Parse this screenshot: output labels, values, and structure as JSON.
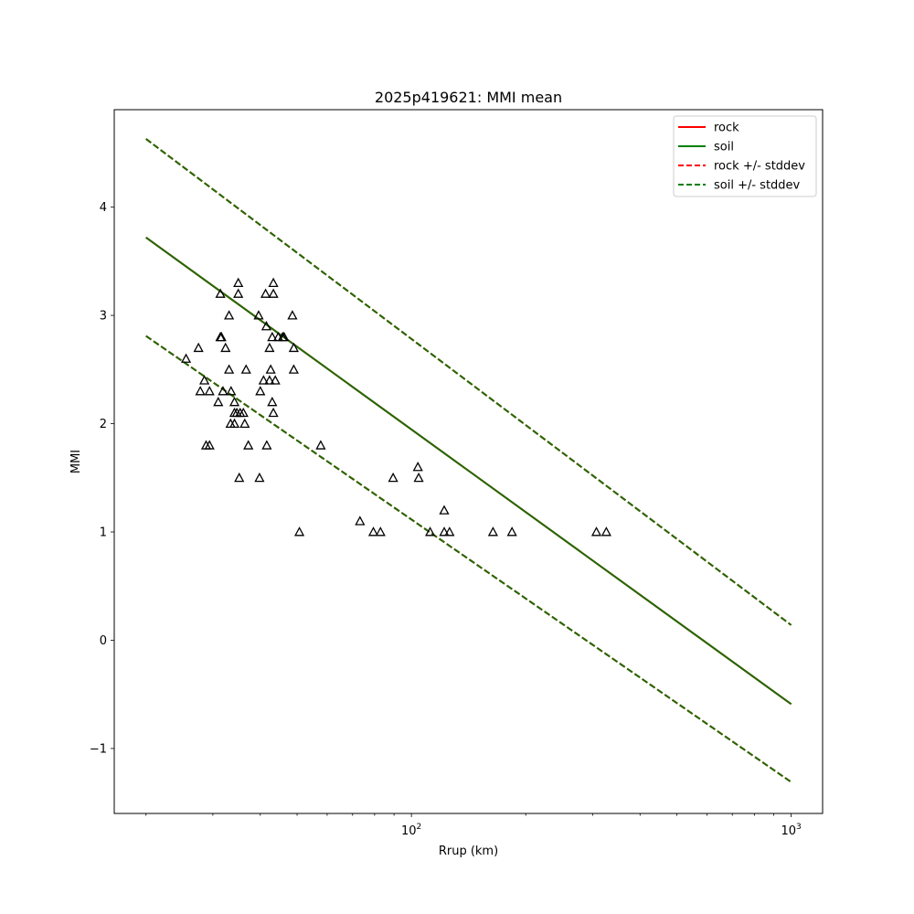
{
  "chart_data": {
    "type": "scatter",
    "title": "2025p419621: MMI mean",
    "xlabel": "Rrup (km)",
    "ylabel": "MMI",
    "xscale": "log",
    "xlim": [
      16.5,
      1210
    ],
    "ylim": [
      -1.6,
      4.9
    ],
    "x_major_ticks": [
      {
        "value": 100,
        "base": "10",
        "exp": "2"
      },
      {
        "value": 1000,
        "base": "10",
        "exp": "3"
      }
    ],
    "y_ticks": [
      -1,
      0,
      1,
      2,
      3,
      4
    ],
    "y_tick_labels": [
      "−1",
      "0",
      "1",
      "2",
      "3",
      "4"
    ],
    "grid": false,
    "legend_position": "top-right",
    "legend": [
      {
        "label": "rock",
        "color": "#ff0000",
        "style": "solid"
      },
      {
        "label": "soil",
        "color": "#008000",
        "style": "solid"
      },
      {
        "label": "rock +/- stddev",
        "color": "#ff0000",
        "style": "dashed"
      },
      {
        "label": "soil +/- stddev",
        "color": "#008000",
        "style": "dashed"
      }
    ],
    "lines": [
      {
        "name": "rock",
        "color": "#ff0000",
        "style": "solid",
        "x": [
          20,
          1000
        ],
        "y": [
          3.72,
          -0.59
        ]
      },
      {
        "name": "rock + stddev",
        "color": "#ff0000",
        "style": "dashed",
        "x": [
          20,
          1000
        ],
        "y": [
          4.63,
          0.14
        ]
      },
      {
        "name": "rock - stddev",
        "color": "#ff0000",
        "style": "dashed",
        "x": [
          20,
          1000
        ],
        "y": [
          2.81,
          -1.31
        ]
      },
      {
        "name": "soil",
        "color": "#1e6b00",
        "style": "solid",
        "x": [
          20,
          1000
        ],
        "y": [
          3.72,
          -0.59
        ]
      },
      {
        "name": "soil + stddev",
        "color": "#1e6b00",
        "style": "dashed",
        "x": [
          20,
          1000
        ],
        "y": [
          4.63,
          0.14
        ]
      },
      {
        "name": "soil - stddev",
        "color": "#1e6b00",
        "style": "dashed",
        "x": [
          20,
          1000
        ],
        "y": [
          2.81,
          -1.31
        ]
      }
    ],
    "points": {
      "marker": "triangle",
      "color": "#000000",
      "data": [
        [
          25.5,
          2.6
        ],
        [
          27.5,
          2.7
        ],
        [
          27.8,
          2.3
        ],
        [
          28.5,
          2.4
        ],
        [
          28.8,
          1.8
        ],
        [
          29.4,
          2.3
        ],
        [
          29.4,
          1.8
        ],
        [
          31.0,
          2.2
        ],
        [
          31.4,
          3.2
        ],
        [
          31.4,
          2.8
        ],
        [
          31.6,
          2.8
        ],
        [
          31.9,
          2.3
        ],
        [
          32.4,
          2.7
        ],
        [
          33.1,
          3.0
        ],
        [
          33.1,
          2.5
        ],
        [
          33.5,
          2.3
        ],
        [
          33.4,
          2.0
        ],
        [
          34.2,
          2.2
        ],
        [
          34.2,
          2.1
        ],
        [
          34.2,
          2.0
        ],
        [
          34.7,
          2.1
        ],
        [
          35.0,
          3.3
        ],
        [
          35.0,
          3.2
        ],
        [
          35.2,
          1.5
        ],
        [
          35.4,
          2.1
        ],
        [
          36.1,
          2.1
        ],
        [
          36.4,
          2.0
        ],
        [
          36.7,
          2.5
        ],
        [
          37.2,
          1.8
        ],
        [
          39.6,
          3.0
        ],
        [
          39.8,
          1.5
        ],
        [
          40.0,
          2.3
        ],
        [
          40.8,
          2.4
        ],
        [
          41.3,
          3.2
        ],
        [
          41.5,
          2.9
        ],
        [
          41.6,
          1.8
        ],
        [
          42.3,
          2.7
        ],
        [
          42.3,
          2.4
        ],
        [
          42.6,
          2.5
        ],
        [
          43.0,
          2.8
        ],
        [
          43.0,
          2.2
        ],
        [
          43.3,
          3.3
        ],
        [
          43.3,
          3.2
        ],
        [
          43.3,
          2.1
        ],
        [
          43.8,
          2.4
        ],
        [
          44.6,
          2.8
        ],
        [
          45.8,
          2.8
        ],
        [
          46.2,
          2.8
        ],
        [
          48.6,
          3.0
        ],
        [
          49.0,
          2.7
        ],
        [
          49.0,
          2.5
        ],
        [
          50.7,
          1.0
        ],
        [
          57.7,
          1.8
        ],
        [
          73.2,
          1.1
        ],
        [
          79.4,
          1.0
        ],
        [
          82.9,
          1.0
        ],
        [
          89.5,
          1.5
        ],
        [
          104.0,
          1.6
        ],
        [
          104.5,
          1.5
        ],
        [
          112.0,
          1.0
        ],
        [
          122.0,
          1.2
        ],
        [
          122.0,
          1.0
        ],
        [
          126.0,
          1.0
        ],
        [
          164.0,
          1.0
        ],
        [
          184.0,
          1.0
        ],
        [
          307.0,
          1.0
        ],
        [
          326.0,
          1.0
        ]
      ]
    }
  }
}
